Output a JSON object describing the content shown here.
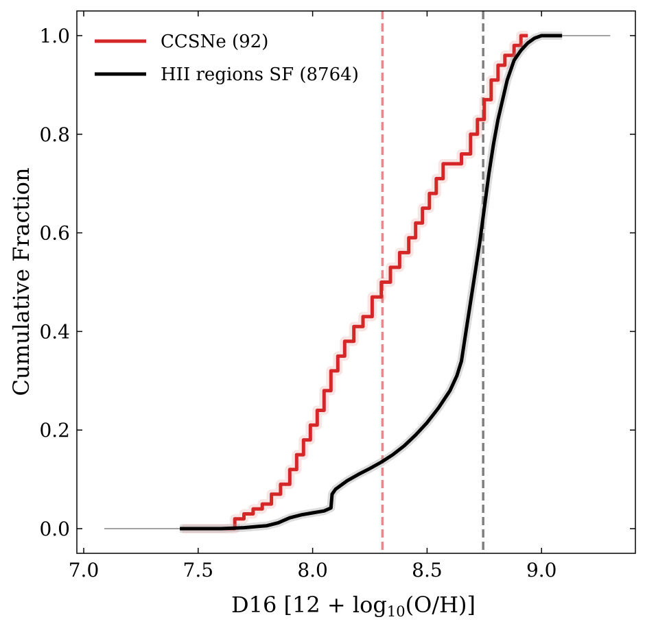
{
  "chart_data": {
    "type": "line",
    "subtype": "cumulative-step",
    "xlabel": "D16 [12 + log10(O/H)]",
    "xlabel_parts": {
      "main": "D16 [12 + log",
      "sub": "10",
      "rest": "(O/H)]"
    },
    "ylabel": "Cumulative Fraction",
    "xlim": [
      6.97,
      9.41
    ],
    "ylim": [
      -0.05,
      1.05
    ],
    "x_ticks": [
      7.0,
      7.5,
      8.0,
      8.5,
      9.0
    ],
    "x_tick_labels": [
      "7.0",
      "7.5",
      "8.0",
      "8.5",
      "9.0"
    ],
    "y_ticks": [
      0.0,
      0.2,
      0.4,
      0.6,
      0.8,
      1.0
    ],
    "y_tick_labels": [
      "0.0",
      "0.2",
      "0.4",
      "0.6",
      "0.8",
      "1.0"
    ],
    "grid": false,
    "legend_position": "top-left",
    "series": [
      {
        "name": "CCSNe (92)",
        "color": "#d62728",
        "points": [
          [
            7.43,
            0.0
          ],
          [
            7.66,
            0.0
          ],
          [
            7.66,
            0.02
          ],
          [
            7.7,
            0.02
          ],
          [
            7.7,
            0.03
          ],
          [
            7.74,
            0.03
          ],
          [
            7.74,
            0.04
          ],
          [
            7.78,
            0.04
          ],
          [
            7.78,
            0.05
          ],
          [
            7.82,
            0.05
          ],
          [
            7.82,
            0.07
          ],
          [
            7.86,
            0.07
          ],
          [
            7.86,
            0.09
          ],
          [
            7.9,
            0.09
          ],
          [
            7.9,
            0.12
          ],
          [
            7.93,
            0.12
          ],
          [
            7.93,
            0.15
          ],
          [
            7.96,
            0.15
          ],
          [
            7.96,
            0.18
          ],
          [
            7.99,
            0.18
          ],
          [
            7.99,
            0.21
          ],
          [
            8.02,
            0.21
          ],
          [
            8.02,
            0.24
          ],
          [
            8.05,
            0.24
          ],
          [
            8.05,
            0.28
          ],
          [
            8.08,
            0.28
          ],
          [
            8.08,
            0.32
          ],
          [
            8.11,
            0.32
          ],
          [
            8.11,
            0.35
          ],
          [
            8.14,
            0.35
          ],
          [
            8.14,
            0.38
          ],
          [
            8.18,
            0.38
          ],
          [
            8.18,
            0.41
          ],
          [
            8.22,
            0.41
          ],
          [
            8.22,
            0.43
          ],
          [
            8.26,
            0.43
          ],
          [
            8.26,
            0.47
          ],
          [
            8.3,
            0.47
          ],
          [
            8.3,
            0.5
          ],
          [
            8.34,
            0.5
          ],
          [
            8.34,
            0.53
          ],
          [
            8.38,
            0.53
          ],
          [
            8.38,
            0.56
          ],
          [
            8.42,
            0.56
          ],
          [
            8.42,
            0.59
          ],
          [
            8.45,
            0.59
          ],
          [
            8.45,
            0.62
          ],
          [
            8.48,
            0.62
          ],
          [
            8.48,
            0.65
          ],
          [
            8.51,
            0.65
          ],
          [
            8.51,
            0.68
          ],
          [
            8.54,
            0.68
          ],
          [
            8.54,
            0.71
          ],
          [
            8.57,
            0.71
          ],
          [
            8.57,
            0.74
          ],
          [
            8.65,
            0.74
          ],
          [
            8.65,
            0.76
          ],
          [
            8.69,
            0.76
          ],
          [
            8.69,
            0.8
          ],
          [
            8.72,
            0.8
          ],
          [
            8.72,
            0.83
          ],
          [
            8.75,
            0.83
          ],
          [
            8.75,
            0.87
          ],
          [
            8.78,
            0.87
          ],
          [
            8.78,
            0.91
          ],
          [
            8.81,
            0.91
          ],
          [
            8.81,
            0.94
          ],
          [
            8.84,
            0.94
          ],
          [
            8.84,
            0.96
          ],
          [
            8.88,
            0.96
          ],
          [
            8.88,
            0.98
          ],
          [
            8.91,
            0.98
          ],
          [
            8.91,
            1.0
          ],
          [
            8.94,
            1.0
          ]
        ]
      },
      {
        "name": "HII regions SF (8764)",
        "color": "#000000",
        "points": [
          [
            7.42,
            0.0
          ],
          [
            7.6,
            0.0
          ],
          [
            7.7,
            0.002
          ],
          [
            7.8,
            0.006
          ],
          [
            7.85,
            0.012
          ],
          [
            7.9,
            0.022
          ],
          [
            7.95,
            0.028
          ],
          [
            8.0,
            0.032
          ],
          [
            8.05,
            0.036
          ],
          [
            8.08,
            0.042
          ],
          [
            8.085,
            0.07
          ],
          [
            8.1,
            0.08
          ],
          [
            8.15,
            0.097
          ],
          [
            8.2,
            0.11
          ],
          [
            8.25,
            0.122
          ],
          [
            8.3,
            0.135
          ],
          [
            8.35,
            0.15
          ],
          [
            8.4,
            0.168
          ],
          [
            8.45,
            0.19
          ],
          [
            8.5,
            0.215
          ],
          [
            8.55,
            0.245
          ],
          [
            8.6,
            0.28
          ],
          [
            8.63,
            0.31
          ],
          [
            8.65,
            0.34
          ],
          [
            8.67,
            0.4
          ],
          [
            8.69,
            0.46
          ],
          [
            8.71,
            0.52
          ],
          [
            8.73,
            0.58
          ],
          [
            8.75,
            0.65
          ],
          [
            8.77,
            0.72
          ],
          [
            8.79,
            0.78
          ],
          [
            8.81,
            0.83
          ],
          [
            8.83,
            0.87
          ],
          [
            8.85,
            0.91
          ],
          [
            8.88,
            0.95
          ],
          [
            8.91,
            0.97
          ],
          [
            8.94,
            0.985
          ],
          [
            8.97,
            0.995
          ],
          [
            9.0,
            1.0
          ],
          [
            9.09,
            1.0
          ]
        ]
      }
    ],
    "reference_lines": [
      {
        "name": "ccsne-median",
        "x": 8.305,
        "color": "#e8888a",
        "style": "dashed"
      },
      {
        "name": "hii-median",
        "x": 8.745,
        "color": "#7f7f7f",
        "style": "dashed"
      }
    ]
  }
}
